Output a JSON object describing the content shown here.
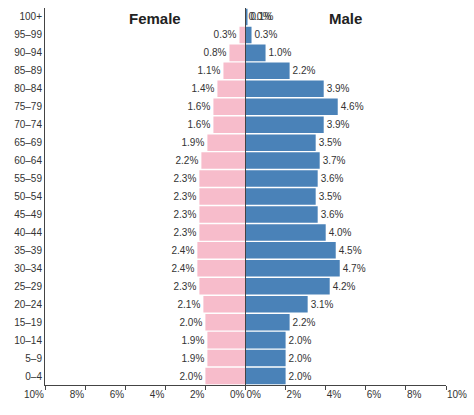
{
  "chart_data": [
    {
      "type": "bar",
      "orientation": "horizontal",
      "title": "Female",
      "color": "#f7bccb",
      "categories": [
        "0–4",
        "5–9",
        "10–14",
        "15–19",
        "20–24",
        "25–29",
        "30–34",
        "35–39",
        "40–44",
        "45–49",
        "50–54",
        "55–59",
        "60–64",
        "65–69",
        "70–74",
        "75–79",
        "80–84",
        "85–89",
        "90–94",
        "95–99",
        "100+"
      ],
      "values": [
        2.0,
        1.9,
        1.9,
        2.0,
        2.1,
        2.3,
        2.4,
        2.4,
        2.3,
        2.3,
        2.3,
        2.3,
        2.2,
        1.9,
        1.6,
        1.6,
        1.4,
        1.1,
        0.8,
        0.3,
        0.0
      ],
      "value_labels": [
        "2.0%",
        "1.9%",
        "1.9%",
        "2.0%",
        "2.1%",
        "2.3%",
        "2.4%",
        "2.4%",
        "2.3%",
        "2.3%",
        "2.3%",
        "2.3%",
        "2.2%",
        "1.9%",
        "1.6%",
        "1.6%",
        "1.4%",
        "1.1%",
        "0.8%",
        "0.3%",
        "0.0%"
      ],
      "data_labels": true,
      "grid": false,
      "xlim": [
        10,
        0
      ],
      "xticks": [
        {
          "value": 10,
          "label": "10%"
        },
        {
          "value": 8,
          "label": "8%"
        },
        {
          "value": 6,
          "label": "6%"
        },
        {
          "value": 4,
          "label": "4%"
        },
        {
          "value": 2,
          "label": "2%"
        },
        {
          "value": 0,
          "label": "0%"
        }
      ]
    },
    {
      "type": "bar",
      "orientation": "horizontal",
      "title": "Male",
      "color": "#4a82b8",
      "categories": [
        "0–4",
        "5–9",
        "10–14",
        "15–19",
        "20–24",
        "25–29",
        "30–34",
        "35–39",
        "40–44",
        "45–49",
        "50–54",
        "55–59",
        "60–64",
        "65–69",
        "70–74",
        "75–79",
        "80–84",
        "85–89",
        "90–94",
        "95–99",
        "100+"
      ],
      "values": [
        2.0,
        2.0,
        2.0,
        2.2,
        3.1,
        4.2,
        4.7,
        4.5,
        4.0,
        3.6,
        3.5,
        3.6,
        3.7,
        3.5,
        3.9,
        4.6,
        3.9,
        2.2,
        1.0,
        0.3,
        0.1
      ],
      "value_labels": [
        "2.0%",
        "2.0%",
        "2.0%",
        "2.2%",
        "3.1%",
        "4.2%",
        "4.7%",
        "4.5%",
        "4.0%",
        "3.6%",
        "3.5%",
        "3.6%",
        "3.7%",
        "3.5%",
        "3.9%",
        "4.6%",
        "3.9%",
        "2.2%",
        "1.0%",
        "0.3%",
        "0.1%"
      ],
      "data_labels": true,
      "grid": false,
      "tick_labels": "x",
      "xlim": [
        0,
        10
      ],
      "xticks": [
        {
          "value": 0,
          "label": "0%"
        },
        {
          "value": 2,
          "label": "2%"
        },
        {
          "value": 4,
          "label": "4%"
        },
        {
          "value": 6,
          "label": "6%"
        },
        {
          "value": 8,
          "label": "8%"
        },
        {
          "value": 10,
          "label": "10%"
        }
      ]
    }
  ]
}
